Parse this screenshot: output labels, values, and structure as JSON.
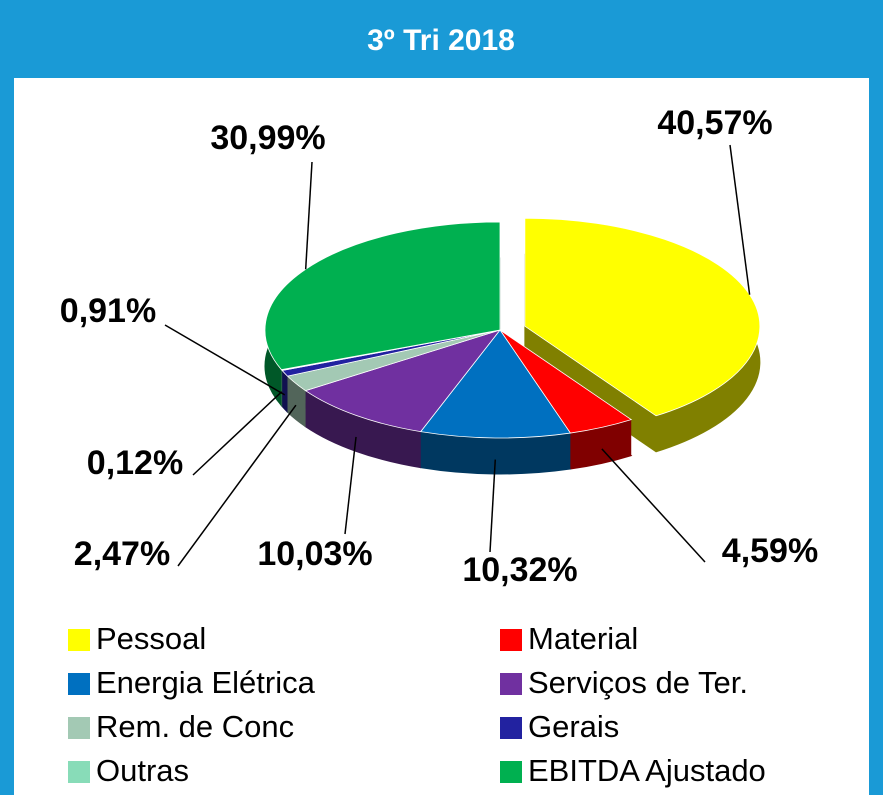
{
  "chart_data": {
    "type": "pie",
    "title": "3º Tri 2018",
    "categories": [
      "Pessoal",
      "Material",
      "Energia Elétrica",
      "Serviços de Ter.",
      "Rem. de Conc",
      "Gerais",
      "Outras",
      "EBITDA Ajustado"
    ],
    "values": [
      40.57,
      4.59,
      10.32,
      10.03,
      2.47,
      0.91,
      0.12,
      30.99
    ],
    "value_labels": [
      "40,57%",
      "4,59%",
      "10,32%",
      "10,03%",
      "2,47%",
      "0,91%",
      "0,12%",
      "30,99%"
    ],
    "colors": [
      "#ffff00",
      "#ff0000",
      "#0070c0",
      "#7030a0",
      "#a3c9b4",
      "#2222a0",
      "#88dcb8",
      "#00b050"
    ]
  }
}
